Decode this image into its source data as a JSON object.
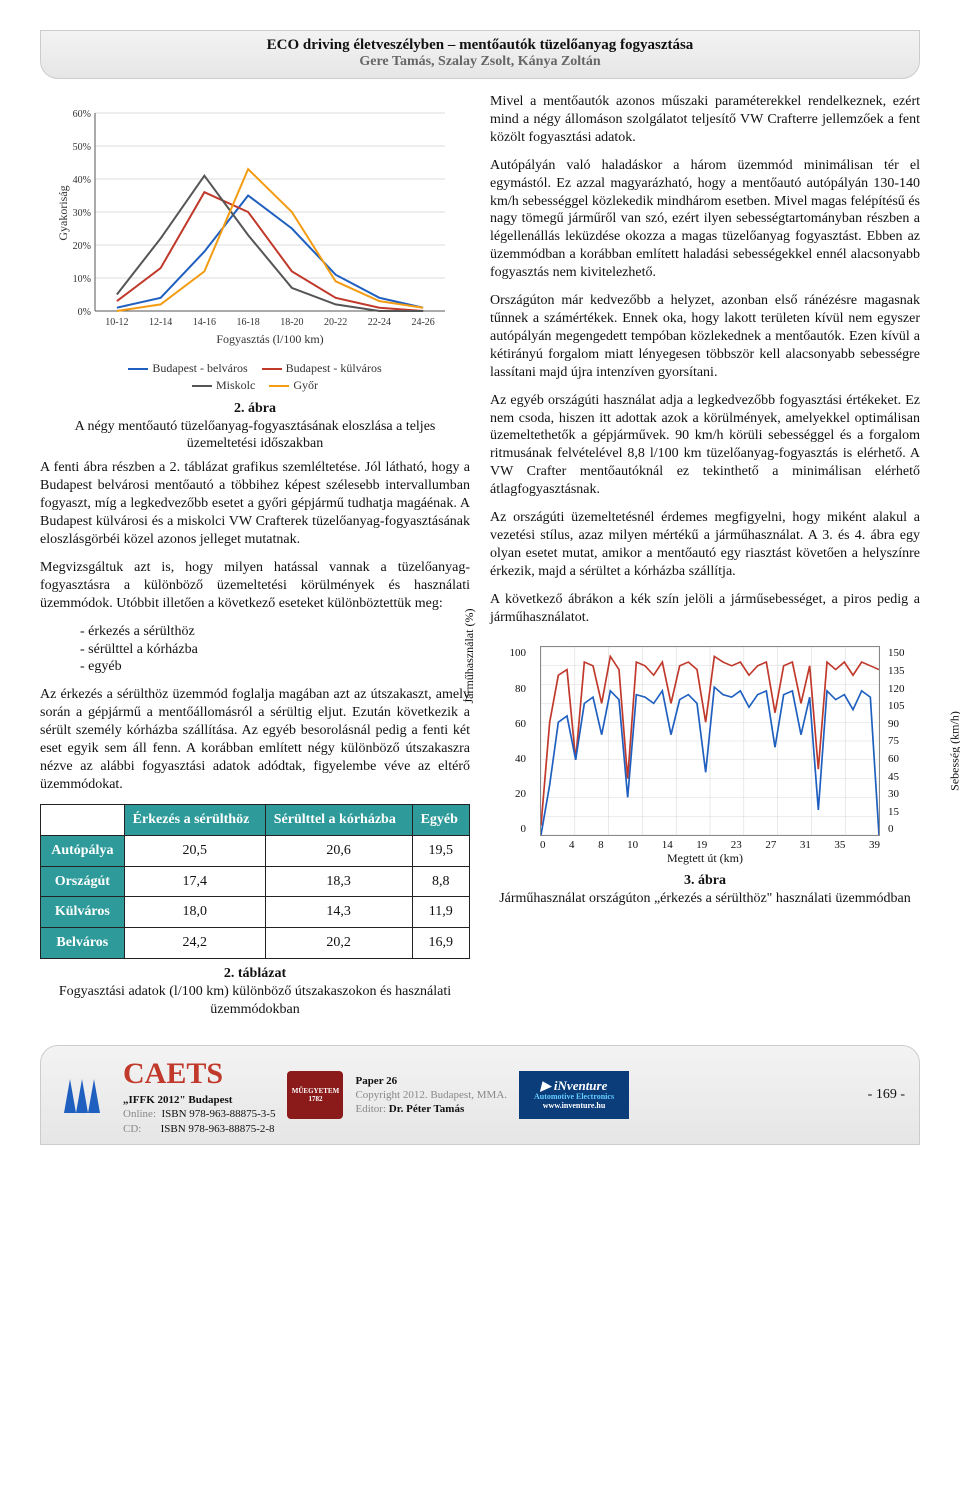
{
  "header": {
    "title": "ECO driving életveszélyben – mentőautók tüzelőanyag fogyasztása",
    "authors": "Gere Tamás, Szalay Zsolt, Kánya Zoltán"
  },
  "dist_chart": {
    "type": "line",
    "ylabel": "Gyakoriság",
    "xlabel": "Fogyasztás (l/100 km)",
    "x_categories": [
      "10-12",
      "12-14",
      "14-16",
      "16-18",
      "18-20",
      "20-22",
      "22-24",
      "24-26"
    ],
    "yticks": [
      "0%",
      "10%",
      "20%",
      "30%",
      "40%",
      "50%",
      "60%"
    ],
    "series": [
      {
        "name": "Budapest - belváros",
        "color": "#1f5fbf",
        "values": [
          1,
          4,
          18,
          35,
          25,
          11,
          4,
          1
        ]
      },
      {
        "name": "Budapest - külváros",
        "color": "#c0392b",
        "values": [
          3,
          13,
          36,
          30,
          12,
          4,
          1,
          0
        ]
      },
      {
        "name": "Miskolc",
        "color": "#555555",
        "values": [
          5,
          22,
          41,
          23,
          7,
          2,
          0,
          0
        ]
      },
      {
        "name": "Győr",
        "color": "#f39c12",
        "values": [
          0,
          2,
          12,
          43,
          30,
          9,
          3,
          1
        ]
      }
    ],
    "ylim": [
      0,
      60
    ],
    "grid_color": "#dcdcdc",
    "background": "#ffffff"
  },
  "fig2_caption_title": "2. ábra",
  "fig2_caption_text": "A négy mentőautó tüzelőanyag-fogyasztásának eloszlása a teljes üzemeltetési időszakban",
  "para_left_1": "A fenti ábra részben a 2. táblázat grafikus szemléltetése. Jól látható, hogy a Budapest belvárosi mentőautó a többihez képest szélesebb intervallumban fogyaszt, míg a legkedvezőbb esetet a győri gépjármű tudhatja magáénak. A Budapest külvárosi és a miskolci VW Crafterek tüzelőanyag-fogyasztásának eloszlásgörbéi közel azonos jelleget mutatnak.",
  "para_left_2": "Megvizsgáltuk azt is, hogy milyen hatással vannak a tüzelőanyag-fogyasztásra a különböző üzemeltetési körülmények és használati üzemmódok. Utóbbit illetően a következő eseteket különböztettük meg:",
  "modes": [
    "- érkezés a sérülthöz",
    "- sérülttel a kórházba",
    "- egyéb"
  ],
  "para_left_3": "Az érkezés a sérülthöz üzemmód foglalja magában azt az útszakaszt, amely során a gépjármű a mentőállomásról a sérültig eljut. Ezután következik a sérült személy kórházba szállítása. Az egyéb besorolásnál pedig a fenti két eset egyik sem áll fenn. A korábban említett négy különböző útszakaszra nézve az alábbi fogyasztási adatok adódtak, figyelembe véve az eltérő üzemmódokat.",
  "table": {
    "columns": [
      "",
      "Érkezés a sérülthöz",
      "Sérülttel a kórházba",
      "Egyéb"
    ],
    "rows": [
      {
        "label": "Autópálya",
        "values": [
          "20,5",
          "20,6",
          "19,5"
        ]
      },
      {
        "label": "Országút",
        "values": [
          "17,4",
          "18,3",
          "8,8"
        ]
      },
      {
        "label": "Külváros",
        "values": [
          "18,0",
          "14,3",
          "11,9"
        ]
      },
      {
        "label": "Belváros",
        "values": [
          "24,2",
          "20,2",
          "16,9"
        ]
      }
    ]
  },
  "table_caption_title": "2. táblázat",
  "table_caption_text": "Fogyasztási adatok (l/100 km) különböző útszakaszokon és használati üzemmódokban",
  "para_right_1": "Mivel a mentőautók azonos műszaki paraméterekkel rendelkeznek, ezért mind a négy állomáson szolgálatot teljesítő VW Crafterre jellemzőek a fent közölt fogyasztási adatok.",
  "para_right_2": "Autópályán való haladáskor a három üzemmód minimálisan tér el egymástól. Ez azzal magyarázható, hogy a mentőautó autópályán 130-140 km/h sebességgel közlekedik mindhárom esetben. Mivel magas felépítésű és nagy tömegű járműről van szó, ezért ilyen sebességtartományban részben a légellenállás leküzdése okozza a magas tüzelőanyag fogyasztást. Ebben az üzemmódban a korábban említett haladási sebesség­ekkel ennél alacsonyabb fogyasztás nem kivitelezhető.",
  "para_right_3": "Országúton már kedvezőbb a helyzet, azonban első ránézésre magasnak tűnnek a számértékek. Ennek oka, hogy lakott területen kívül nem egyszer autópályán megengedett tempóban közlekednek a mentőautók. Ezen kívül a kétirányú forgalom miatt lényegesen többször kell alacsonyabb sebességre lassítani majd újra intenzíven gyorsítani.",
  "para_right_4": "Az egyéb országúti használat adja a legkedvezőbb fogyasztási értékeket. Ez nem csoda, hiszen itt adottak azok a körülmények, amelyekkel optimálisan üzemeltethetők a gépjárművek. 90 km/h körüli sebességgel és a forgalom ritmusának felvételével 8,8 l/100 km tüzelőanyag-fogyasztás is elérhető. A VW Crafter mentőautóknál ez tekinthető a minimálisan elérhető átlagfogyasztásnak.",
  "para_right_5": "Az országúti üzemeltetésnél érdemes megfigyelni, hogy miként alakul a vezetési stílus, azaz milyen mértékű a járműhasználat. A 3. és 4. ábra egy olyan esetet mutat, amikor a mentőautó egy riasztást követően a helyszínre érkezik, majd a sérültet a kórházba szállítja.",
  "para_right_6": "A következő ábrákon a kék szín jelöli a járműsebességet, a piros pedig a járműhasználatot.",
  "usage_chart": {
    "type": "line",
    "ylabel_left": "Járműhasználat (%)",
    "ylabel_right": "Sebesség (km/h)",
    "xlabel": "Megtett út (km)",
    "yticks_left": [
      "0",
      "20",
      "40",
      "60",
      "80",
      "100"
    ],
    "yticks_right": [
      "0",
      "15",
      "30",
      "45",
      "60",
      "75",
      "90",
      "105",
      "120",
      "135",
      "150"
    ],
    "xticks": [
      "0",
      "4",
      "8",
      "10",
      "14",
      "19",
      "23",
      "27",
      "31",
      "35",
      "39"
    ],
    "series": [
      {
        "name": "usage",
        "color": "#c0392b",
        "axis": "left",
        "values": [
          5,
          60,
          85,
          88,
          40,
          92,
          90,
          70,
          95,
          88,
          30,
          92,
          90,
          85,
          92,
          70,
          90,
          92,
          88,
          60,
          95,
          92,
          90,
          92,
          85,
          90,
          92,
          65,
          90,
          92,
          70,
          90,
          35,
          92,
          88,
          92,
          85,
          92,
          90,
          88
        ]
      },
      {
        "name": "speed",
        "color": "#1f5fbf",
        "axis": "right",
        "values": [
          0,
          40,
          90,
          95,
          60,
          105,
          110,
          80,
          115,
          108,
          30,
          112,
          110,
          105,
          115,
          80,
          108,
          112,
          105,
          50,
          118,
          112,
          110,
          115,
          102,
          112,
          115,
          70,
          112,
          115,
          80,
          110,
          20,
          115,
          108,
          112,
          100,
          115,
          110,
          0
        ]
      }
    ],
    "ylim_left": [
      0,
      100
    ],
    "ylim_right": [
      0,
      150
    ],
    "xlim": [
      0,
      39
    ],
    "grid_color": "#d8d8d8"
  },
  "fig3_caption_title": "3. ábra",
  "fig3_caption_text": "Járműhasználat országúton „érkezés a sérülthöz\" használati üzemmódban",
  "footer": {
    "caets": "CAETS",
    "event": "„IFFK 2012\" Budapest",
    "online_label": "Online:",
    "online_isbn": "ISBN 978-963-88875-3-5",
    "cd_label": "CD:",
    "cd_isbn": "ISBN 978-963-88875-2-8",
    "paper": "Paper 26",
    "copyright": "Copyright 2012. Budapest, MMA.",
    "editor_label": "Editor:",
    "editor": "Dr. Péter Tamás",
    "inventure": "iNventure",
    "inventure_sub": "Automotive Electronics",
    "inventure_url": "www.inventure.hu",
    "page": "- 169 -"
  }
}
